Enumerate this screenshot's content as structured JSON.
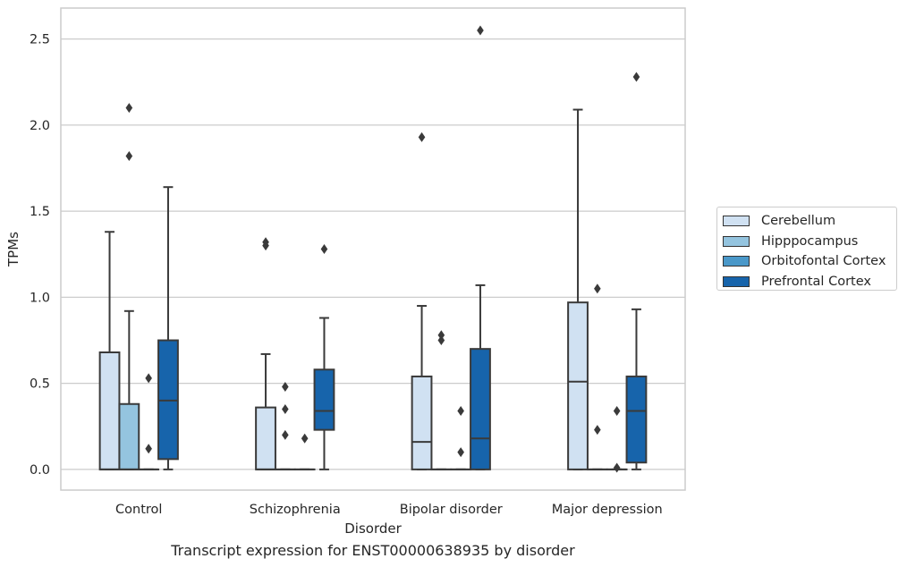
{
  "caption": "Transcript expression for ENST00000638935 by disorder",
  "chart_data": {
    "type": "box",
    "xlabel": "Disorder",
    "ylabel": "TPMs",
    "ylim": [
      -0.12,
      2.68
    ],
    "yticks": [
      "0.0",
      "0.5",
      "1.0",
      "1.5",
      "2.0",
      "2.5"
    ],
    "grid": true,
    "legend_placement": "right",
    "categories": [
      "Control",
      "Schizophrenia",
      "Bipolar disorder",
      "Major depression"
    ],
    "series": [
      {
        "name": "Cerebellum",
        "color": "#d0e1f2",
        "boxes": [
          {
            "q1": 0.0,
            "median": 0.0,
            "q3": 0.68,
            "whisker_low": 0.0,
            "whisker_high": 1.38,
            "outliers": []
          },
          {
            "q1": 0.0,
            "median": 0.0,
            "q3": 0.36,
            "whisker_low": 0.0,
            "whisker_high": 0.67,
            "outliers": [
              1.3,
              1.32
            ]
          },
          {
            "q1": 0.0,
            "median": 0.16,
            "q3": 0.54,
            "whisker_low": 0.0,
            "whisker_high": 0.95,
            "outliers": [
              1.93
            ]
          },
          {
            "q1": 0.0,
            "median": 0.51,
            "q3": 0.97,
            "whisker_low": 0.0,
            "whisker_high": 2.09,
            "outliers": []
          }
        ]
      },
      {
        "name": "Hipppocampus",
        "color": "#94c4df",
        "boxes": [
          {
            "q1": 0.0,
            "median": 0.0,
            "q3": 0.38,
            "whisker_low": 0.0,
            "whisker_high": 0.92,
            "outliers": [
              1.82,
              2.1
            ]
          },
          {
            "q1": 0.0,
            "median": 0.0,
            "q3": 0.0,
            "whisker_low": 0.0,
            "whisker_high": 0.0,
            "outliers": [
              0.2,
              0.35,
              0.48
            ]
          },
          {
            "q1": 0.0,
            "median": 0.0,
            "q3": 0.0,
            "whisker_low": 0.0,
            "whisker_high": 0.0,
            "outliers": [
              0.75,
              0.78
            ]
          },
          {
            "q1": 0.0,
            "median": 0.0,
            "q3": 0.0,
            "whisker_low": 0.0,
            "whisker_high": 0.0,
            "outliers": [
              0.23,
              1.05
            ]
          }
        ]
      },
      {
        "name": "Orbitofontal Cortex",
        "color": "#4a98c9",
        "boxes": [
          {
            "q1": 0.0,
            "median": 0.0,
            "q3": 0.0,
            "whisker_low": 0.0,
            "whisker_high": 0.0,
            "outliers": [
              0.12,
              0.53
            ]
          },
          {
            "q1": 0.0,
            "median": 0.0,
            "q3": 0.0,
            "whisker_low": 0.0,
            "whisker_high": 0.0,
            "outliers": [
              0.18
            ]
          },
          {
            "q1": 0.0,
            "median": 0.0,
            "q3": 0.0,
            "whisker_low": 0.0,
            "whisker_high": 0.0,
            "outliers": [
              0.1,
              0.34
            ]
          },
          {
            "q1": 0.0,
            "median": 0.0,
            "q3": 0.0,
            "whisker_low": 0.0,
            "whisker_high": 0.0,
            "outliers": [
              0.01,
              0.34
            ]
          }
        ]
      },
      {
        "name": "Prefrontal Cortex",
        "color": "#1764ab",
        "boxes": [
          {
            "q1": 0.06,
            "median": 0.4,
            "q3": 0.75,
            "whisker_low": 0.0,
            "whisker_high": 1.64,
            "outliers": []
          },
          {
            "q1": 0.23,
            "median": 0.34,
            "q3": 0.58,
            "whisker_low": 0.0,
            "whisker_high": 0.88,
            "outliers": [
              1.28
            ]
          },
          {
            "q1": 0.0,
            "median": 0.18,
            "q3": 0.7,
            "whisker_low": 0.0,
            "whisker_high": 1.07,
            "outliers": [
              2.55
            ]
          },
          {
            "q1": 0.04,
            "median": 0.34,
            "q3": 0.54,
            "whisker_low": 0.0,
            "whisker_high": 0.93,
            "outliers": [
              2.28
            ]
          }
        ]
      }
    ]
  }
}
